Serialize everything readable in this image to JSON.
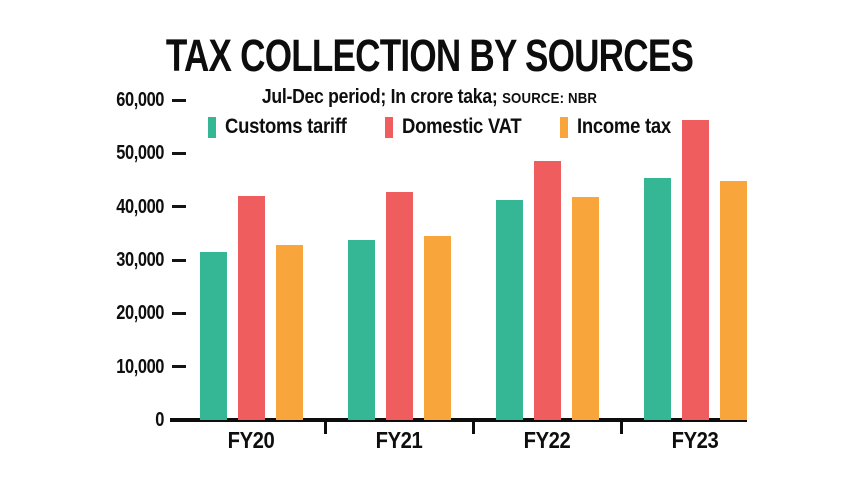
{
  "title": "TAX COLLECTION BY SOURCES",
  "subtitle": "Jul-Dec period; In crore taka; ",
  "source_label": "SOURCE: NBR",
  "colors": {
    "customs_teal": "#35b795",
    "vat_red": "#f05d5e",
    "income_orange": "#f8a63c",
    "axis_black": "#0d0d0d",
    "background": "#ffffff"
  },
  "chart_data": {
    "type": "bar",
    "title": "TAX COLLECTION BY SOURCES",
    "subtitle": "Jul-Dec period; In crore taka; SOURCE: NBR",
    "categories": [
      "FY20",
      "FY21",
      "FY22",
      "FY23"
    ],
    "series": [
      {
        "name": "Customs tariff",
        "color": "#35b795",
        "values": [
          31500,
          33800,
          41200,
          45300
        ]
      },
      {
        "name": "Domestic VAT",
        "color": "#f05d5e",
        "values": [
          42000,
          42800,
          48600,
          56300
        ]
      },
      {
        "name": "Income tax",
        "color": "#f8a63c",
        "values": [
          32900,
          34500,
          41900,
          44800
        ]
      }
    ],
    "xlabel": "",
    "ylabel": "",
    "ylim": [
      0,
      60000
    ],
    "ytick_step": 10000,
    "ytick_labels": [
      "0",
      "10,000",
      "20,000",
      "30,000",
      "40,000",
      "50,000",
      "60,000"
    ],
    "grid": false,
    "legend_position": "top-center"
  }
}
